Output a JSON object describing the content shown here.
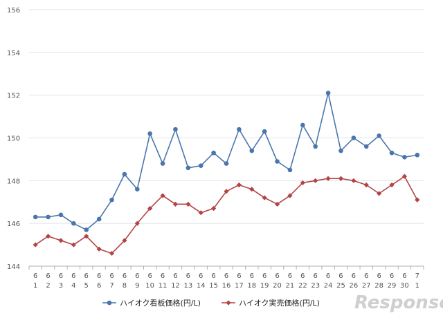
{
  "chart_data": {
    "type": "line",
    "categories": [
      [
        "6",
        "1"
      ],
      [
        "6",
        "2"
      ],
      [
        "6",
        "3"
      ],
      [
        "6",
        "4"
      ],
      [
        "6",
        "5"
      ],
      [
        "6",
        "6"
      ],
      [
        "6",
        "7"
      ],
      [
        "6",
        "8"
      ],
      [
        "6",
        "9"
      ],
      [
        "6",
        "10"
      ],
      [
        "6",
        "11"
      ],
      [
        "6",
        "12"
      ],
      [
        "6",
        "13"
      ],
      [
        "6",
        "14"
      ],
      [
        "6",
        "15"
      ],
      [
        "6",
        "16"
      ],
      [
        "6",
        "17"
      ],
      [
        "6",
        "18"
      ],
      [
        "6",
        "19"
      ],
      [
        "6",
        "20"
      ],
      [
        "6",
        "21"
      ],
      [
        "6",
        "22"
      ],
      [
        "6",
        "23"
      ],
      [
        "6",
        "24"
      ],
      [
        "6",
        "25"
      ],
      [
        "6",
        "26"
      ],
      [
        "6",
        "27"
      ],
      [
        "6",
        "28"
      ],
      [
        "6",
        "29"
      ],
      [
        "6",
        "30"
      ],
      [
        "7",
        "1"
      ]
    ],
    "series": [
      {
        "name": "ハイオク看板価格(円/L)",
        "color": "#4a76ab",
        "marker": "circle",
        "values": [
          146.3,
          146.3,
          146.4,
          146.0,
          145.7,
          146.2,
          147.1,
          148.3,
          147.6,
          150.2,
          148.8,
          150.4,
          148.6,
          148.7,
          149.3,
          148.8,
          150.4,
          149.4,
          150.3,
          148.9,
          148.5,
          150.6,
          149.6,
          152.1,
          149.4,
          150.0,
          149.6,
          150.1,
          149.3,
          149.1,
          149.2
        ]
      },
      {
        "name": "ハイオク実売価格(円/L)",
        "color": "#b34444",
        "marker": "diamond",
        "values": [
          145.0,
          145.4,
          145.2,
          145.0,
          145.4,
          144.8,
          144.6,
          145.2,
          146.0,
          146.7,
          147.3,
          146.9,
          146.9,
          146.5,
          146.7,
          147.5,
          147.8,
          147.6,
          147.2,
          146.9,
          147.3,
          147.9,
          148.0,
          148.1,
          148.1,
          148.0,
          147.8,
          147.4,
          147.8,
          148.2,
          147.1
        ]
      }
    ],
    "ylim": [
      144,
      156
    ],
    "yticks": [
      144,
      146,
      148,
      150,
      152,
      154,
      156
    ],
    "grid": true,
    "legend_position": "bottom"
  },
  "watermark": "Response."
}
